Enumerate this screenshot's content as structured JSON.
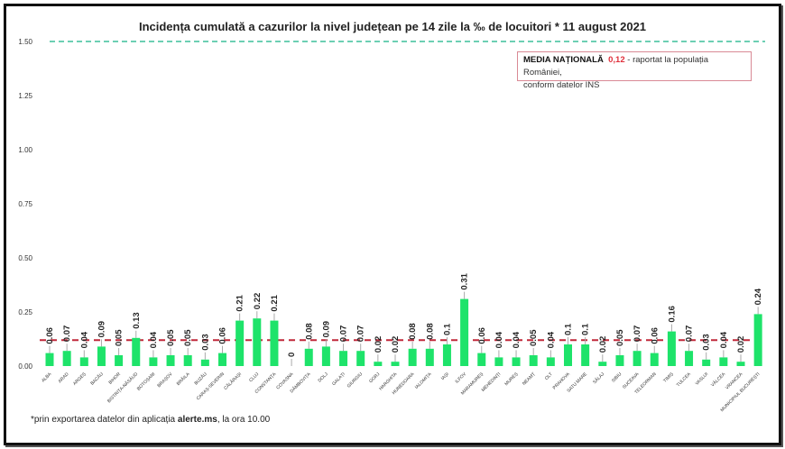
{
  "chart_data": {
    "type": "bar",
    "title": "Incidența cumulată a cazurilor la nivel județean pe 14 zile la ‰ de locuitori *  11 august 2021",
    "categories": [
      "ALBA",
      "ARAD",
      "ARGEȘ",
      "BACĂU",
      "BIHOR",
      "BISTRIȚA-NĂSĂUD",
      "BOTOȘANI",
      "BRAȘOV",
      "BRĂILA",
      "BUZĂU",
      "CARAȘ-SEVERIN",
      "CĂLĂRAȘI",
      "CLUJ",
      "CONSTANȚA",
      "COVASNA",
      "DÂMBOVIȚA",
      "DOLJ",
      "GALAȚI",
      "GIURGIU",
      "GORJ",
      "HARGHITA",
      "HUNEDOARA",
      "IALOMIȚA",
      "IAȘI",
      "ILFOV",
      "MARAMUREȘ",
      "MEHEDINȚI",
      "MUREȘ",
      "NEAMȚ",
      "OLT",
      "PRAHOVA",
      "SATU MARE",
      "SĂLAJ",
      "SIBIU",
      "SUCEAVA",
      "TELEORMAN",
      "TIMIȘ",
      "TULCEA",
      "VASLUI",
      "VÂLCEA",
      "VRANCEA",
      "MUNICIPIUL BUCUREȘTI"
    ],
    "values": [
      0.06,
      0.07,
      0.04,
      0.09,
      0.05,
      0.13,
      0.04,
      0.05,
      0.05,
      0.03,
      0.06,
      0.21,
      0.22,
      0.21,
      0,
      0.08,
      0.09,
      0.07,
      0.07,
      0.02,
      0.02,
      0.08,
      0.08,
      0.1,
      0.31,
      0.06,
      0.04,
      0.04,
      0.05,
      0.04,
      0.1,
      0.1,
      0.02,
      0.05,
      0.07,
      0.06,
      0.16,
      0.07,
      0.03,
      0.04,
      0.02,
      0.24
    ],
    "yticks": [
      "0.00",
      "0.25",
      "0.50",
      "0.75",
      "1.00",
      "1.25",
      "1.50"
    ],
    "ylim": [
      0,
      1.5
    ],
    "reference_lines": [
      {
        "value": 0.12,
        "color": "#c0283a",
        "style": "dashed"
      },
      {
        "value": 1.5,
        "color": "#3cbf9a",
        "style": "dashed"
      }
    ],
    "bar_color": "#1ee36a",
    "grid": false
  },
  "legend": {
    "bold": "MEDIA NAȚIONALĂ",
    "value": "0,12",
    "rest": " - raportat la populația României,",
    "line2": "conform datelor INS"
  },
  "footnote": {
    "pre": "*prin exportarea datelor din aplicația ",
    "bold": "alerte.ms",
    "post": ", la ora 10.00"
  }
}
